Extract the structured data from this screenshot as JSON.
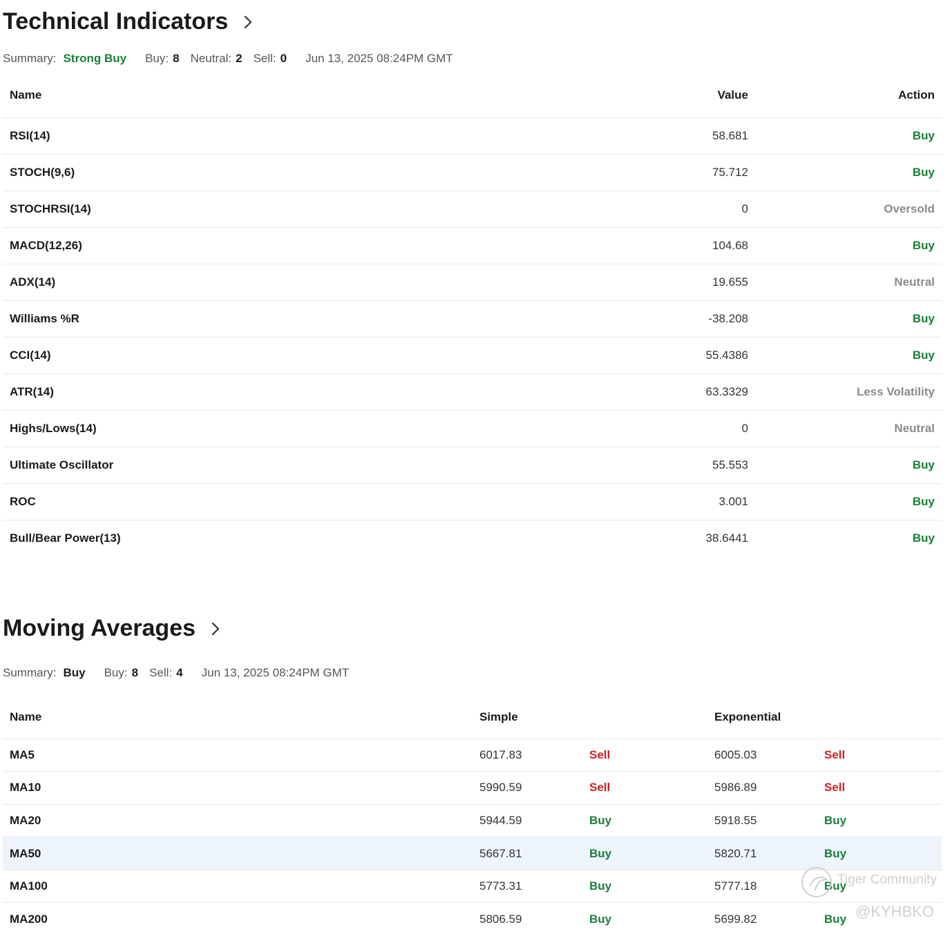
{
  "technical_indicators": {
    "title": "Technical Indicators",
    "summary": {
      "label": "Summary:",
      "value": "Strong Buy",
      "buy_label": "Buy:",
      "buy_count": "8",
      "neutral_label": "Neutral:",
      "neutral_count": "2",
      "sell_label": "Sell:",
      "sell_count": "0",
      "timestamp": "Jun 13, 2025 08:24PM GMT"
    },
    "columns": [
      "Name",
      "Value",
      "Action"
    ],
    "rows": [
      {
        "name": "RSI(14)",
        "value": "58.681",
        "action": "Buy",
        "tone": "green"
      },
      {
        "name": "STOCH(9,6)",
        "value": "75.712",
        "action": "Buy",
        "tone": "green"
      },
      {
        "name": "STOCHRSI(14)",
        "value": "0",
        "action": "Oversold",
        "tone": "gray"
      },
      {
        "name": "MACD(12,26)",
        "value": "104.68",
        "action": "Buy",
        "tone": "green"
      },
      {
        "name": "ADX(14)",
        "value": "19.655",
        "action": "Neutral",
        "tone": "gray"
      },
      {
        "name": "Williams %R",
        "value": "-38.208",
        "action": "Buy",
        "tone": "green"
      },
      {
        "name": "CCI(14)",
        "value": "55.4386",
        "action": "Buy",
        "tone": "green"
      },
      {
        "name": "ATR(14)",
        "value": "63.3329",
        "action": "Less Volatility",
        "tone": "gray"
      },
      {
        "name": "Highs/Lows(14)",
        "value": "0",
        "action": "Neutral",
        "tone": "gray"
      },
      {
        "name": "Ultimate Oscillator",
        "value": "55.553",
        "action": "Buy",
        "tone": "green"
      },
      {
        "name": "ROC",
        "value": "3.001",
        "action": "Buy",
        "tone": "green"
      },
      {
        "name": "Bull/Bear Power(13)",
        "value": "38.6441",
        "action": "Buy",
        "tone": "green"
      }
    ]
  },
  "moving_averages": {
    "title": "Moving Averages",
    "summary": {
      "label": "Summary:",
      "value": "Buy",
      "buy_label": "Buy:",
      "buy_count": "8",
      "sell_label": "Sell:",
      "sell_count": "4",
      "timestamp": "Jun 13, 2025 08:24PM GMT"
    },
    "columns": [
      "Name",
      "Simple",
      "",
      "Exponential",
      ""
    ],
    "rows": [
      {
        "name": "MA5",
        "simple": "6017.83",
        "simple_action": "Sell",
        "simple_tone": "red",
        "exp": "6005.03",
        "exp_action": "Sell",
        "exp_tone": "red",
        "highlight": false
      },
      {
        "name": "MA10",
        "simple": "5990.59",
        "simple_action": "Sell",
        "simple_tone": "red",
        "exp": "5986.89",
        "exp_action": "Sell",
        "exp_tone": "red",
        "highlight": false
      },
      {
        "name": "MA20",
        "simple": "5944.59",
        "simple_action": "Buy",
        "simple_tone": "green",
        "exp": "5918.55",
        "exp_action": "Buy",
        "exp_tone": "green",
        "highlight": false
      },
      {
        "name": "MA50",
        "simple": "5667.81",
        "simple_action": "Buy",
        "simple_tone": "green",
        "exp": "5820.71",
        "exp_action": "Buy",
        "exp_tone": "green",
        "highlight": true
      },
      {
        "name": "MA100",
        "simple": "5773.31",
        "simple_action": "Buy",
        "simple_tone": "green",
        "exp": "5777.18",
        "exp_action": "Buy",
        "exp_tone": "green",
        "highlight": false
      },
      {
        "name": "MA200",
        "simple": "5806.59",
        "simple_action": "Buy",
        "simple_tone": "green",
        "exp": "5699.82",
        "exp_action": "Buy",
        "exp_tone": "green",
        "highlight": false
      }
    ]
  },
  "watermark": {
    "brand": "Tiger Community",
    "handle": "@KYHBKO"
  },
  "colors": {
    "buy": "#1a7f37",
    "sell": "#cf1f1f",
    "neutral": "#8a8a8a",
    "highlight_row": "#edf4fb"
  }
}
